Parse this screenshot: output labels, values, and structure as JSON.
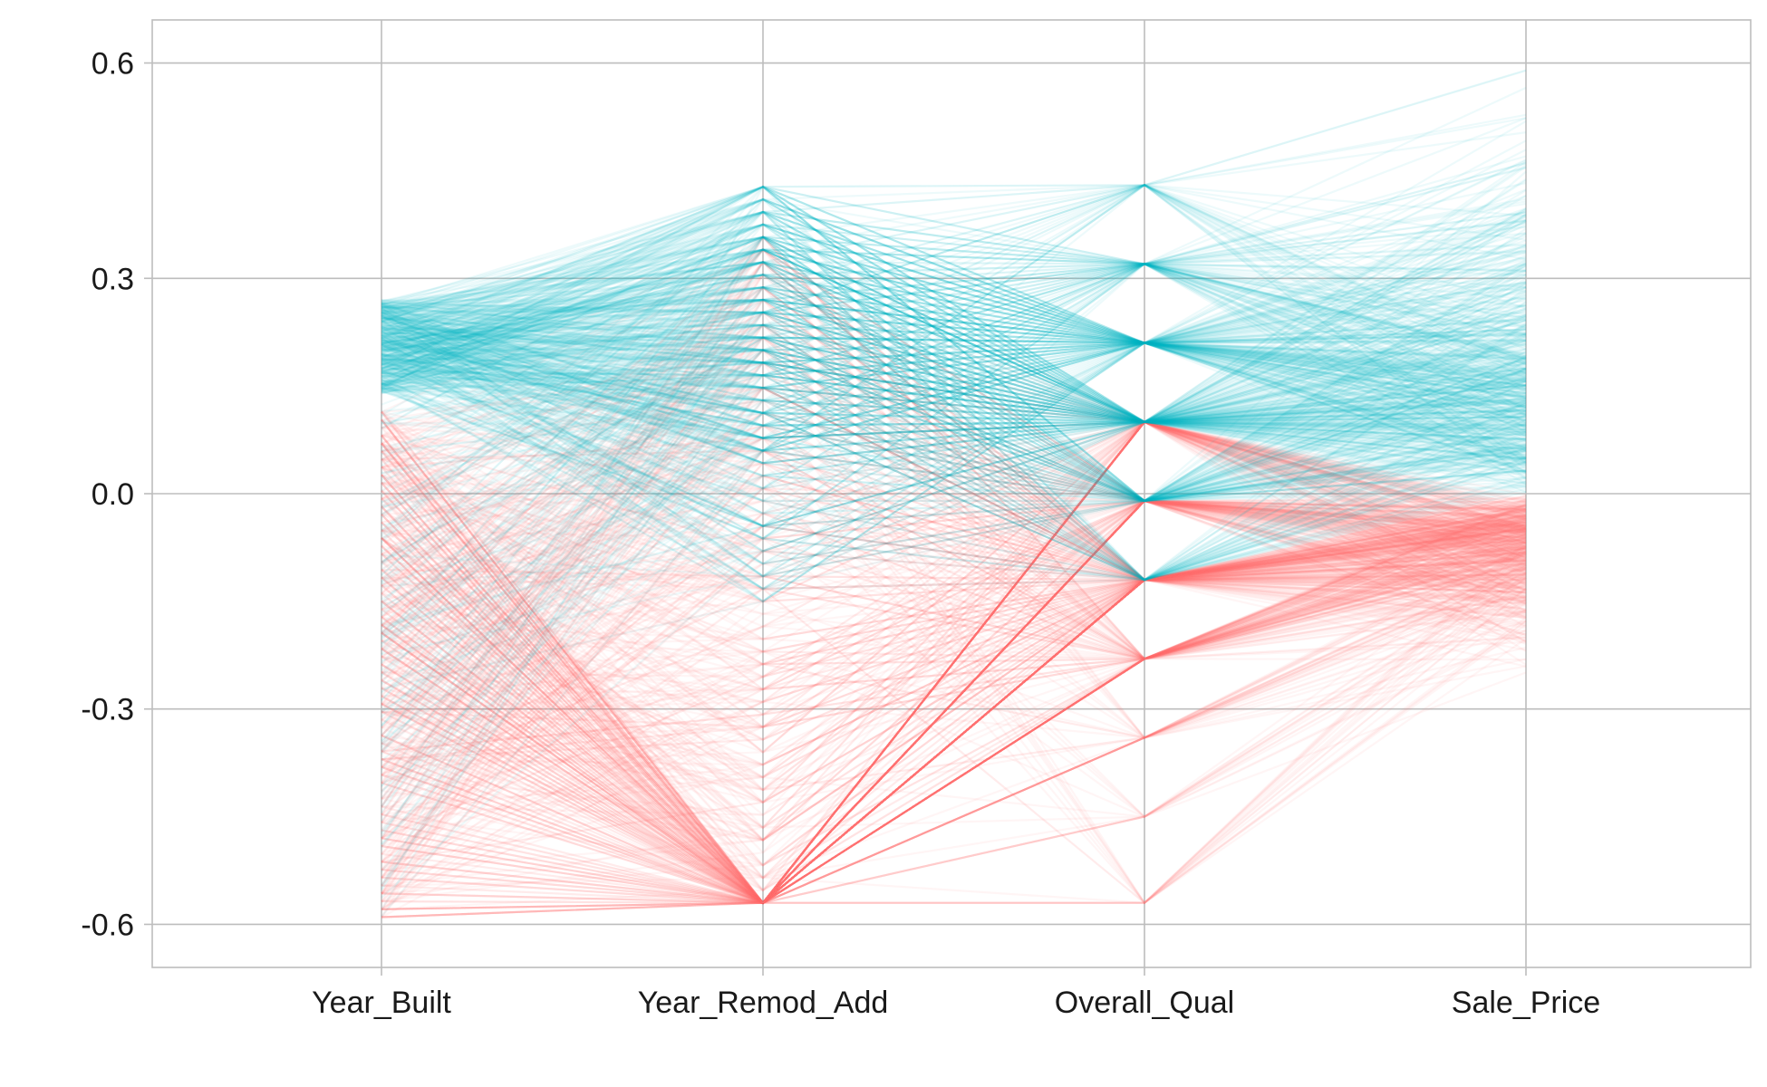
{
  "chart_data": {
    "type": "line",
    "subtype": "parallel-coordinates",
    "title": "",
    "xlabel": "",
    "ylabel": "",
    "axes": [
      "Year_Built",
      "Year_Remod_Add",
      "Overall_Qual",
      "Sale_Price"
    ],
    "y_ticks": [
      "0.6",
      "0.3",
      "0.0",
      "-0.3",
      "-0.6"
    ],
    "y_tick_values": [
      0.6,
      0.3,
      0.0,
      -0.3,
      -0.6
    ],
    "ylim": [
      -0.66,
      0.66
    ],
    "grid": true,
    "legend": "none",
    "groups": [
      {
        "color": "#F8766D",
        "Year_Remod_Add_level_range": [
          -0.57,
          0.35
        ],
        "Overall_Qual_levels": [
          0.1,
          -0.01,
          -0.12,
          -0.23,
          -0.34,
          -0.45,
          -0.57
        ],
        "Sale_Price_range": [
          -0.25,
          0.0
        ]
      },
      {
        "color": "#00BFC4",
        "Year_Remod_Add_level_range": [
          -0.1,
          0.43
        ],
        "Overall_Qual_levels": [
          0.43,
          0.32,
          0.21,
          0.1,
          -0.01,
          -0.12
        ],
        "Sale_Price_range": [
          0.0,
          0.59
        ]
      }
    ],
    "Year_Built_range": [
      -0.59,
      0.27
    ],
    "Overall_Qual_levels_all": [
      0.43,
      0.32,
      0.21,
      0.1,
      -0.01,
      -0.12,
      -0.23,
      -0.34,
      -0.45,
      -0.57
    ]
  }
}
